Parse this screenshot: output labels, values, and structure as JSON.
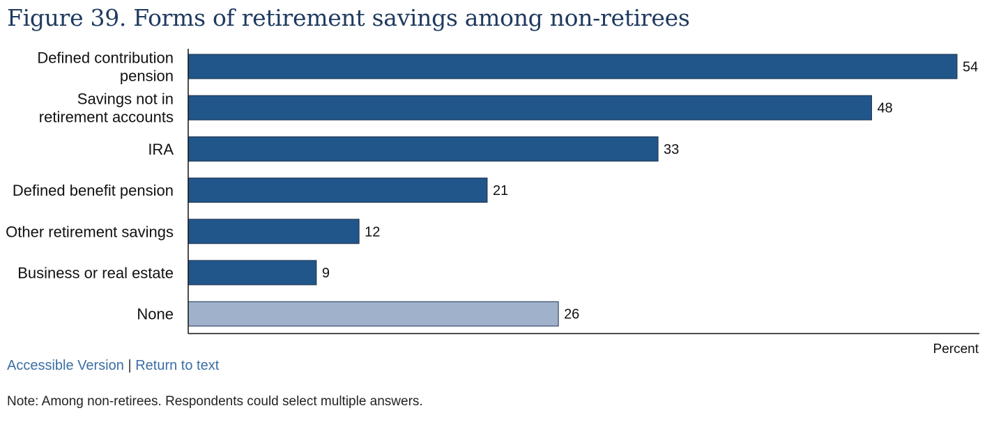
{
  "title": "Figure 39. Forms of retirement savings among non-retirees",
  "chart_data": {
    "type": "bar",
    "orientation": "horizontal",
    "title": "Figure 39. Forms of retirement savings among non-retirees",
    "xlabel": "Percent",
    "ylabel": "",
    "xlim": [
      0,
      54
    ],
    "grid": false,
    "categories": [
      [
        "Defined contribution",
        "pension"
      ],
      [
        "Savings not in",
        "retirement accounts"
      ],
      [
        "IRA"
      ],
      [
        "Defined benefit pension"
      ],
      [
        "Other retirement savings"
      ],
      [
        "Business or real estate"
      ],
      [
        "None"
      ]
    ],
    "values": [
      54,
      48,
      33,
      21,
      12,
      9,
      26
    ],
    "colors": [
      "#21568a",
      "#21568a",
      "#21568a",
      "#21568a",
      "#21568a",
      "#21568a",
      "#a0b1cc"
    ]
  },
  "links": {
    "accessible": "Accessible Version",
    "separator": "|",
    "return": "Return to text"
  },
  "note": "Note: Among non-retirees. Respondents could select multiple answers."
}
